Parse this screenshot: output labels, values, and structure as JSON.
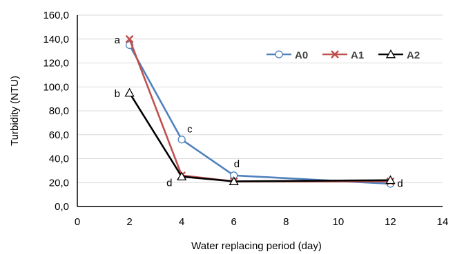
{
  "chart_data": {
    "type": "line",
    "xlabel": "Water replacing period (day)",
    "ylabel": "Turbidity (NTU)",
    "xlim": [
      0,
      14
    ],
    "ylim": [
      0,
      160
    ],
    "x_ticks": [
      0,
      2,
      4,
      6,
      8,
      10,
      12,
      14
    ],
    "y_ticks": [
      "0,0",
      "20,0",
      "40,0",
      "60,0",
      "80,0",
      "100,0",
      "120,0",
      "140,0",
      "160,0"
    ],
    "grid": "horizontal",
    "legend_position": "top-right",
    "x": [
      2,
      4,
      6,
      12
    ],
    "series": [
      {
        "name": "A0",
        "values": [
          135,
          56,
          26,
          19
        ],
        "color": "#4f81bd",
        "marker": "circle"
      },
      {
        "name": "A1",
        "values": [
          140,
          26,
          21,
          21
        ],
        "color": "#c0504d",
        "marker": "x"
      },
      {
        "name": "A2",
        "values": [
          95,
          25,
          21,
          22
        ],
        "color": "#000000",
        "marker": "triangle"
      }
    ],
    "annotations": [
      {
        "text": "a",
        "x": 2,
        "y": 140
      },
      {
        "text": "b",
        "x": 2,
        "y": 95
      },
      {
        "text": "c",
        "x": 4,
        "y": 56
      },
      {
        "text": "d",
        "x": 4,
        "y": 25
      },
      {
        "text": "d",
        "x": 6,
        "y": 26
      },
      {
        "text": "d",
        "x": 12,
        "y": 20
      }
    ]
  }
}
